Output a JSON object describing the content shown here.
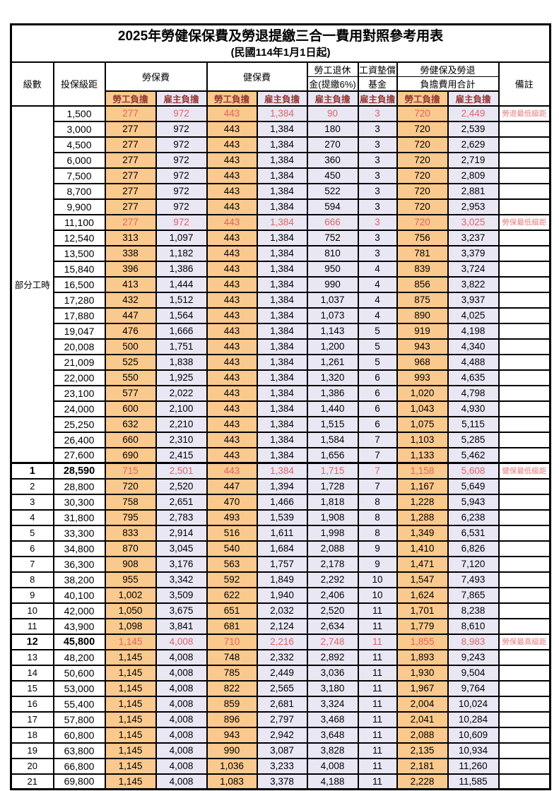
{
  "title": {
    "main": "2025年勞健保保費及勞退提繳三合一費用對照參考用表",
    "sub": "(民國114年1月1日起)"
  },
  "colors": {
    "employee_bg": "#FAC98D",
    "employer_bg": "#E9E7F4",
    "highlight_text": "#E06464",
    "remark_text": "#EA7A7A",
    "subheader_text": "#943634",
    "border": "#000000"
  },
  "table": {
    "headers": {
      "level": "級數",
      "bracket": "投保級距",
      "labor_insurance": "勞保費",
      "health_insurance": "健保費",
      "pension_line1": "勞工退休",
      "pension_line2": "金(提繳6%)",
      "wage_fund_line1": "工資墊償",
      "wage_fund_line2": "基金",
      "total_line1": "勞健保及勞退",
      "total_line2": "負擔費用合計",
      "remarks": "備註",
      "employee_share": "勞工負擔",
      "employer_share": "雇主負擔"
    },
    "part_time_label": "部分工時",
    "part_time_rowspan": 23,
    "rows": [
      {
        "level": "",
        "bracket": "1,500",
        "values": [
          "277",
          "972",
          "443",
          "1,384",
          "90",
          "3",
          "720",
          "2,449"
        ],
        "remark": "勞退最低級距",
        "highlight": true
      },
      {
        "level": "",
        "bracket": "3,000",
        "values": [
          "277",
          "972",
          "443",
          "1,384",
          "180",
          "3",
          "720",
          "2,539"
        ],
        "remark": ""
      },
      {
        "level": "",
        "bracket": "4,500",
        "values": [
          "277",
          "972",
          "443",
          "1,384",
          "270",
          "3",
          "720",
          "2,629"
        ],
        "remark": ""
      },
      {
        "level": "",
        "bracket": "6,000",
        "values": [
          "277",
          "972",
          "443",
          "1,384",
          "360",
          "3",
          "720",
          "2,719"
        ],
        "remark": ""
      },
      {
        "level": "",
        "bracket": "7,500",
        "values": [
          "277",
          "972",
          "443",
          "1,384",
          "450",
          "3",
          "720",
          "2,809"
        ],
        "remark": ""
      },
      {
        "level": "",
        "bracket": "8,700",
        "values": [
          "277",
          "972",
          "443",
          "1,384",
          "522",
          "3",
          "720",
          "2,881"
        ],
        "remark": ""
      },
      {
        "level": "",
        "bracket": "9,900",
        "values": [
          "277",
          "972",
          "443",
          "1,384",
          "594",
          "3",
          "720",
          "2,953"
        ],
        "remark": ""
      },
      {
        "level": "",
        "bracket": "11,100",
        "values": [
          "277",
          "972",
          "443",
          "1,384",
          "666",
          "3",
          "720",
          "3,025"
        ],
        "remark": "勞保最低級距",
        "highlight": true
      },
      {
        "level": "",
        "bracket": "12,540",
        "values": [
          "313",
          "1,097",
          "443",
          "1,384",
          "752",
          "3",
          "756",
          "3,237"
        ],
        "remark": ""
      },
      {
        "level": "",
        "bracket": "13,500",
        "values": [
          "338",
          "1,182",
          "443",
          "1,384",
          "810",
          "3",
          "781",
          "3,379"
        ],
        "remark": ""
      },
      {
        "level": "",
        "bracket": "15,840",
        "values": [
          "396",
          "1,386",
          "443",
          "1,384",
          "950",
          "4",
          "839",
          "3,724"
        ],
        "remark": ""
      },
      {
        "level": "",
        "bracket": "16,500",
        "values": [
          "413",
          "1,444",
          "443",
          "1,384",
          "990",
          "4",
          "856",
          "3,822"
        ],
        "remark": ""
      },
      {
        "level": "",
        "bracket": "17,280",
        "values": [
          "432",
          "1,512",
          "443",
          "1,384",
          "1,037",
          "4",
          "875",
          "3,937"
        ],
        "remark": ""
      },
      {
        "level": "",
        "bracket": "17,880",
        "values": [
          "447",
          "1,564",
          "443",
          "1,384",
          "1,073",
          "4",
          "890",
          "4,025"
        ],
        "remark": ""
      },
      {
        "level": "",
        "bracket": "19,047",
        "values": [
          "476",
          "1,666",
          "443",
          "1,384",
          "1,143",
          "5",
          "919",
          "4,198"
        ],
        "remark": ""
      },
      {
        "level": "",
        "bracket": "20,008",
        "values": [
          "500",
          "1,751",
          "443",
          "1,384",
          "1,200",
          "5",
          "943",
          "4,340"
        ],
        "remark": ""
      },
      {
        "level": "",
        "bracket": "21,009",
        "values": [
          "525",
          "1,838",
          "443",
          "1,384",
          "1,261",
          "5",
          "968",
          "4,488"
        ],
        "remark": ""
      },
      {
        "level": "",
        "bracket": "22,000",
        "values": [
          "550",
          "1,925",
          "443",
          "1,384",
          "1,320",
          "6",
          "993",
          "4,635"
        ],
        "remark": ""
      },
      {
        "level": "",
        "bracket": "23,100",
        "values": [
          "577",
          "2,022",
          "443",
          "1,384",
          "1,386",
          "6",
          "1,020",
          "4,798"
        ],
        "remark": ""
      },
      {
        "level": "",
        "bracket": "24,000",
        "values": [
          "600",
          "2,100",
          "443",
          "1,384",
          "1,440",
          "6",
          "1,043",
          "4,930"
        ],
        "remark": ""
      },
      {
        "level": "",
        "bracket": "25,250",
        "values": [
          "632",
          "2,210",
          "443",
          "1,384",
          "1,515",
          "6",
          "1,075",
          "5,115"
        ],
        "remark": ""
      },
      {
        "level": "",
        "bracket": "26,400",
        "values": [
          "660",
          "2,310",
          "443",
          "1,384",
          "1,584",
          "7",
          "1,103",
          "5,285"
        ],
        "remark": ""
      },
      {
        "level": "",
        "bracket": "27,600",
        "values": [
          "690",
          "2,415",
          "443",
          "1,384",
          "1,656",
          "7",
          "1,133",
          "5,462"
        ],
        "remark": ""
      },
      {
        "level": "1",
        "bracket": "28,590",
        "values": [
          "715",
          "2,501",
          "443",
          "1,384",
          "1,715",
          "7",
          "1,158",
          "5,608"
        ],
        "remark": "健保最低級距",
        "highlight": true,
        "bold": true,
        "section_start": true
      },
      {
        "level": "2",
        "bracket": "28,800",
        "values": [
          "720",
          "2,520",
          "447",
          "1,394",
          "1,728",
          "7",
          "1,167",
          "5,649"
        ],
        "remark": ""
      },
      {
        "level": "3",
        "bracket": "30,300",
        "values": [
          "758",
          "2,651",
          "470",
          "1,466",
          "1,818",
          "8",
          "1,228",
          "5,943"
        ],
        "remark": ""
      },
      {
        "level": "4",
        "bracket": "31,800",
        "values": [
          "795",
          "2,783",
          "493",
          "1,539",
          "1,908",
          "8",
          "1,288",
          "6,238"
        ],
        "remark": ""
      },
      {
        "level": "5",
        "bracket": "33,300",
        "values": [
          "833",
          "2,914",
          "516",
          "1,611",
          "1,998",
          "8",
          "1,349",
          "6,531"
        ],
        "remark": ""
      },
      {
        "level": "6",
        "bracket": "34,800",
        "values": [
          "870",
          "3,045",
          "540",
          "1,684",
          "2,088",
          "9",
          "1,410",
          "6,826"
        ],
        "remark": ""
      },
      {
        "level": "7",
        "bracket": "36,300",
        "values": [
          "908",
          "3,176",
          "563",
          "1,757",
          "2,178",
          "9",
          "1,471",
          "7,120"
        ],
        "remark": ""
      },
      {
        "level": "8",
        "bracket": "38,200",
        "values": [
          "955",
          "3,342",
          "592",
          "1,849",
          "2,292",
          "10",
          "1,547",
          "7,493"
        ],
        "remark": ""
      },
      {
        "level": "9",
        "bracket": "40,100",
        "values": [
          "1,002",
          "3,509",
          "622",
          "1,940",
          "2,406",
          "10",
          "1,624",
          "7,865"
        ],
        "remark": ""
      },
      {
        "level": "10",
        "bracket": "42,000",
        "values": [
          "1,050",
          "3,675",
          "651",
          "2,032",
          "2,520",
          "11",
          "1,701",
          "8,238"
        ],
        "remark": ""
      },
      {
        "level": "11",
        "bracket": "43,900",
        "values": [
          "1,098",
          "3,841",
          "681",
          "2,124",
          "2,634",
          "11",
          "1,779",
          "8,610"
        ],
        "remark": ""
      },
      {
        "level": "12",
        "bracket": "45,800",
        "values": [
          "1,145",
          "4,008",
          "710",
          "2,216",
          "2,748",
          "11",
          "1,855",
          "8,983"
        ],
        "remark": "勞保最高級距",
        "highlight": true,
        "bold": true
      },
      {
        "level": "13",
        "bracket": "48,200",
        "values": [
          "1,145",
          "4,008",
          "748",
          "2,332",
          "2,892",
          "11",
          "1,893",
          "9,243"
        ],
        "remark": ""
      },
      {
        "level": "14",
        "bracket": "50,600",
        "values": [
          "1,145",
          "4,008",
          "785",
          "2,449",
          "3,036",
          "11",
          "1,930",
          "9,504"
        ],
        "remark": ""
      },
      {
        "level": "15",
        "bracket": "53,000",
        "values": [
          "1,145",
          "4,008",
          "822",
          "2,565",
          "3,180",
          "11",
          "1,967",
          "9,764"
        ],
        "remark": ""
      },
      {
        "level": "16",
        "bracket": "55,400",
        "values": [
          "1,145",
          "4,008",
          "859",
          "2,681",
          "3,324",
          "11",
          "2,004",
          "10,024"
        ],
        "remark": ""
      },
      {
        "level": "17",
        "bracket": "57,800",
        "values": [
          "1,145",
          "4,008",
          "896",
          "2,797",
          "3,468",
          "11",
          "2,041",
          "10,284"
        ],
        "remark": ""
      },
      {
        "level": "18",
        "bracket": "60,800",
        "values": [
          "1,145",
          "4,008",
          "943",
          "2,942",
          "3,648",
          "11",
          "2,088",
          "10,609"
        ],
        "remark": ""
      },
      {
        "level": "19",
        "bracket": "63,800",
        "values": [
          "1,145",
          "4,008",
          "990",
          "3,087",
          "3,828",
          "11",
          "2,135",
          "10,934"
        ],
        "remark": ""
      },
      {
        "level": "20",
        "bracket": "66,800",
        "values": [
          "1,145",
          "4,008",
          "1,036",
          "3,233",
          "4,008",
          "11",
          "2,181",
          "11,260"
        ],
        "remark": ""
      },
      {
        "level": "21",
        "bracket": "69,800",
        "values": [
          "1,145",
          "4,008",
          "1,083",
          "3,378",
          "4,188",
          "11",
          "2,228",
          "11,585"
        ],
        "remark": ""
      }
    ]
  }
}
